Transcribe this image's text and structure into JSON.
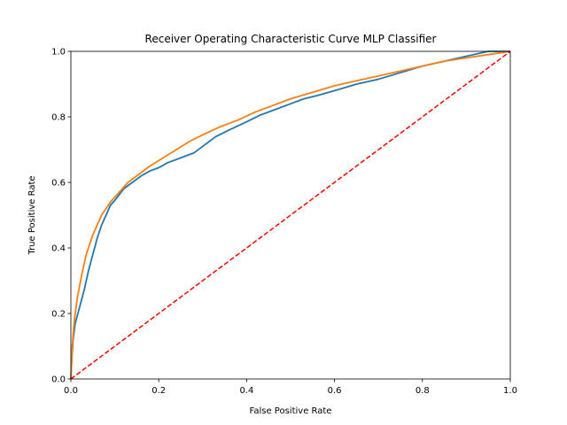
{
  "chart_data": {
    "type": "line",
    "title": "Receiver Operating Characteristic Curve MLP Classifier",
    "xlabel": "False Positive Rate",
    "ylabel": "True Positive Rate",
    "xlim": [
      0.0,
      1.0
    ],
    "ylim": [
      0.0,
      1.0
    ],
    "xticks": [
      "0.0",
      "0.2",
      "0.4",
      "0.6",
      "0.8",
      "1.0"
    ],
    "yticks": [
      "0.0",
      "0.2",
      "0.4",
      "0.6",
      "0.8",
      "1.0"
    ],
    "grid": false,
    "legend": "none",
    "series": [
      {
        "color": "#1f77b4",
        "style": "solid",
        "x": [
          0.0,
          0.002,
          0.005,
          0.01,
          0.02,
          0.03,
          0.04,
          0.05,
          0.06,
          0.07,
          0.08,
          0.09,
          0.1,
          0.12,
          0.14,
          0.16,
          0.18,
          0.2,
          0.22,
          0.24,
          0.26,
          0.28,
          0.3,
          0.33,
          0.36,
          0.4,
          0.43,
          0.46,
          0.5,
          0.53,
          0.56,
          0.6,
          0.65,
          0.7,
          0.75,
          0.8,
          0.85,
          0.9,
          0.95,
          1.0
        ],
        "y": [
          0.0,
          0.06,
          0.12,
          0.17,
          0.22,
          0.27,
          0.33,
          0.38,
          0.43,
          0.47,
          0.5,
          0.53,
          0.545,
          0.58,
          0.6,
          0.62,
          0.635,
          0.645,
          0.66,
          0.67,
          0.68,
          0.69,
          0.71,
          0.74,
          0.76,
          0.785,
          0.805,
          0.82,
          0.84,
          0.855,
          0.865,
          0.88,
          0.9,
          0.915,
          0.935,
          0.955,
          0.97,
          0.985,
          1.0,
          1.0
        ]
      },
      {
        "color": "#ff7f0e",
        "style": "solid",
        "x": [
          0.0,
          0.003,
          0.008,
          0.015,
          0.025,
          0.035,
          0.05,
          0.07,
          0.09,
          0.11,
          0.13,
          0.15,
          0.18,
          0.21,
          0.24,
          0.27,
          0.3,
          0.34,
          0.38,
          0.42,
          0.46,
          0.5,
          0.55,
          0.6,
          0.65,
          0.7,
          0.75,
          0.8,
          0.85,
          0.9,
          0.95,
          1.0
        ],
        "y": [
          0.0,
          0.1,
          0.18,
          0.25,
          0.32,
          0.38,
          0.44,
          0.5,
          0.54,
          0.57,
          0.6,
          0.62,
          0.65,
          0.675,
          0.7,
          0.725,
          0.745,
          0.77,
          0.79,
          0.815,
          0.835,
          0.855,
          0.875,
          0.895,
          0.91,
          0.925,
          0.94,
          0.955,
          0.97,
          0.98,
          0.99,
          1.0
        ]
      },
      {
        "color": "#ff0000",
        "style": "dashed",
        "x": [
          0.0,
          1.0
        ],
        "y": [
          0.0,
          1.0
        ]
      }
    ]
  }
}
